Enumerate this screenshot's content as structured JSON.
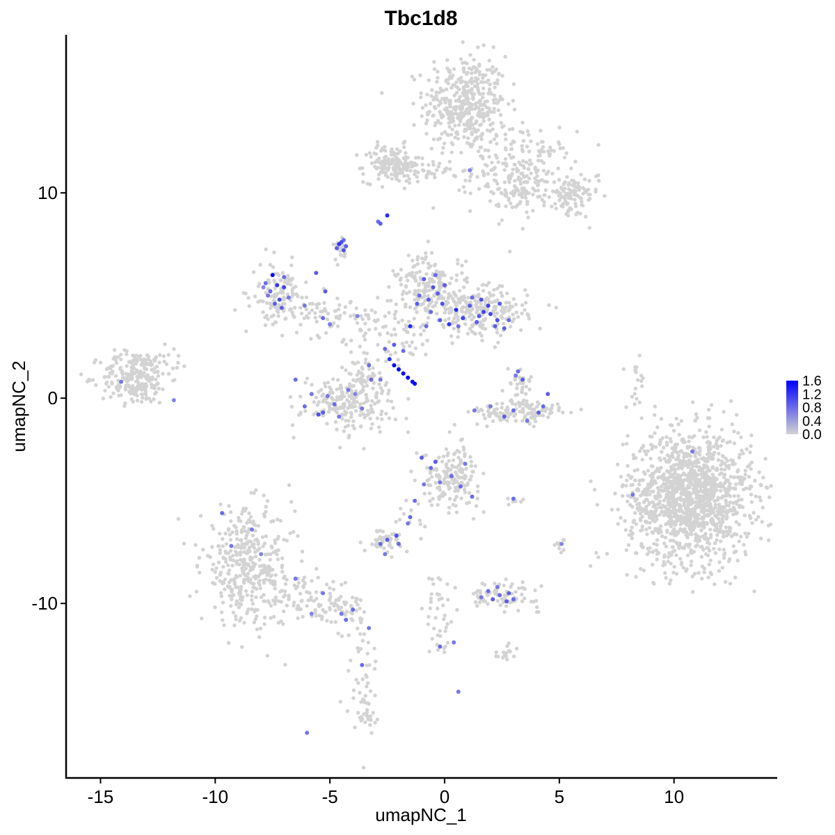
{
  "chart_data": {
    "type": "scatter",
    "title": "Tbc1d8",
    "xlabel": "umapNC_1",
    "ylabel": "umapNC_2",
    "xlim": [
      -16.5,
      14.5
    ],
    "ylim": [
      -18.5,
      17.7
    ],
    "x_ticks": [
      -15,
      -10,
      -5,
      0,
      5,
      10
    ],
    "x_tick_labels": [
      "-15",
      "-10",
      "-5",
      "0",
      "5",
      "10"
    ],
    "y_ticks": [
      -10,
      0,
      10
    ],
    "y_tick_labels": [
      "-10",
      "0",
      "10"
    ],
    "grid": false,
    "legend": {
      "placement": "right",
      "type": "colorbar",
      "min": 0.0,
      "max": 1.6,
      "ticks": [
        0.0,
        0.4,
        0.8,
        1.2,
        1.6
      ],
      "tick_labels": [
        "0.0",
        "0.4",
        "0.8",
        "1.2",
        "1.6"
      ],
      "low_color": "#d3d3d3",
      "high_color": "#0000ff"
    },
    "background_point_color": "#d3d3d3",
    "clusters": [
      {
        "cx": 0.9,
        "cy": 14.3,
        "sx": 0.9,
        "sy": 1.2,
        "n": 420
      },
      {
        "cx": 3.4,
        "cy": 11.0,
        "sx": 1.1,
        "sy": 1.0,
        "n": 220
      },
      {
        "cx": 5.5,
        "cy": 9.8,
        "sx": 0.6,
        "sy": 0.5,
        "n": 90
      },
      {
        "cx": -2.3,
        "cy": 11.4,
        "sx": 0.6,
        "sy": 0.45,
        "n": 150
      },
      {
        "cx": -0.6,
        "cy": 11.1,
        "sx": 0.8,
        "sy": 0.25,
        "n": 40
      },
      {
        "cx": -13.5,
        "cy": 1.0,
        "sx": 0.75,
        "sy": 0.65,
        "n": 230
      },
      {
        "cx": -12.0,
        "cy": 2.0,
        "sx": 0.4,
        "sy": 0.4,
        "n": 20
      },
      {
        "cx": 10.7,
        "cy": -4.8,
        "sx": 1.35,
        "sy": 1.6,
        "n": 1400
      },
      {
        "cx": -8.6,
        "cy": -8.2,
        "sx": 1.0,
        "sy": 1.4,
        "n": 380
      },
      {
        "cx": -6.0,
        "cy": -9.8,
        "sx": 1.1,
        "sy": 0.5,
        "n": 80
      },
      {
        "cx": -4.4,
        "cy": -10.5,
        "sx": 0.6,
        "sy": 0.4,
        "n": 40
      },
      {
        "cx": -3.6,
        "cy": -13.2,
        "sx": 0.35,
        "sy": 1.4,
        "n": 45
      },
      {
        "cx": -3.3,
        "cy": -15.5,
        "sx": 0.3,
        "sy": 0.4,
        "n": 20
      },
      {
        "cx": -7.3,
        "cy": 5.0,
        "sx": 0.55,
        "sy": 0.75,
        "n": 110
      },
      {
        "cx": -5.0,
        "cy": 4.0,
        "sx": 0.9,
        "sy": 0.5,
        "n": 70
      },
      {
        "cx": -4.2,
        "cy": -0.2,
        "sx": 1.0,
        "sy": 0.7,
        "n": 200
      },
      {
        "cx": -3.5,
        "cy": 1.0,
        "sx": 0.45,
        "sy": 0.5,
        "n": 45
      },
      {
        "cx": -0.6,
        "cy": 5.2,
        "sx": 0.75,
        "sy": 0.9,
        "n": 210
      },
      {
        "cx": 1.6,
        "cy": 4.2,
        "sx": 1.0,
        "sy": 0.6,
        "n": 210
      },
      {
        "cx": -2.4,
        "cy": 3.0,
        "sx": 0.9,
        "sy": 0.7,
        "n": 60
      },
      {
        "cx": 3.3,
        "cy": 0.7,
        "sx": 0.3,
        "sy": 0.5,
        "n": 30
      },
      {
        "cx": 3.3,
        "cy": -0.7,
        "sx": 1.1,
        "sy": 0.3,
        "n": 120
      },
      {
        "cx": 0.3,
        "cy": -3.8,
        "sx": 0.6,
        "sy": 0.7,
        "n": 170
      },
      {
        "cx": -1.3,
        "cy": -5.8,
        "sx": 0.4,
        "sy": 0.6,
        "n": 15
      },
      {
        "cx": -2.6,
        "cy": -6.9,
        "sx": 0.45,
        "sy": 0.3,
        "n": 40
      },
      {
        "cx": 2.5,
        "cy": -9.6,
        "sx": 0.8,
        "sy": 0.3,
        "n": 75
      },
      {
        "cx": -0.2,
        "cy": -10.6,
        "sx": 0.3,
        "sy": 1.2,
        "n": 40
      },
      {
        "cx": 2.5,
        "cy": -12.4,
        "sx": 0.3,
        "sy": 0.2,
        "n": 15
      },
      {
        "cx": -4.6,
        "cy": 7.3,
        "sx": 0.15,
        "sy": 0.3,
        "n": 25
      },
      {
        "cx": 3.3,
        "cy": 10.0,
        "sx": 0.4,
        "sy": 0.25,
        "n": 30
      },
      {
        "cx": 8.3,
        "cy": 0.5,
        "sx": 0.25,
        "sy": 0.8,
        "n": 18
      },
      {
        "cx": 5.1,
        "cy": -7.3,
        "sx": 0.15,
        "sy": 0.3,
        "n": 10
      },
      {
        "cx": 3.2,
        "cy": -5.0,
        "sx": 0.2,
        "sy": 0.1,
        "n": 6
      }
    ],
    "expressing_points": [
      [
        -7.5,
        6.0,
        1.6
      ],
      [
        -7.3,
        5.5,
        1.2
      ],
      [
        -7.6,
        5.2,
        0.8
      ],
      [
        -7.8,
        5.6,
        0.8
      ],
      [
        -7.2,
        4.8,
        1.0
      ],
      [
        -7.4,
        4.6,
        0.9
      ],
      [
        -7.0,
        5.9,
        0.8
      ],
      [
        -7.7,
        5.0,
        0.7
      ],
      [
        -7.1,
        4.4,
        0.9
      ],
      [
        -6.8,
        4.9,
        0.7
      ],
      [
        -7.9,
        5.4,
        0.6
      ],
      [
        -7.0,
        5.4,
        1.1
      ],
      [
        -5.2,
        5.2,
        0.9
      ],
      [
        -5.6,
        6.1,
        0.9
      ],
      [
        -6.1,
        4.5,
        0.7
      ],
      [
        -5.0,
        3.6,
        0.7
      ],
      [
        -5.3,
        3.9,
        0.8
      ],
      [
        -3.8,
        4.0,
        0.6
      ],
      [
        -4.6,
        7.5,
        1.2
      ],
      [
        -4.4,
        7.2,
        1.0
      ],
      [
        -4.5,
        7.6,
        1.0
      ],
      [
        -4.3,
        7.4,
        0.9
      ],
      [
        -4.7,
        7.3,
        0.9
      ],
      [
        -4.4,
        7.7,
        0.8
      ],
      [
        -2.8,
        8.5,
        0.9
      ],
      [
        -2.5,
        8.9,
        1.3
      ],
      [
        -2.9,
        8.6,
        0.8
      ],
      [
        -2.2,
        1.6,
        1.6
      ],
      [
        -2.0,
        1.4,
        1.6
      ],
      [
        -1.8,
        1.2,
        1.6
      ],
      [
        -1.6,
        1.0,
        1.6
      ],
      [
        -1.4,
        0.8,
        1.5
      ],
      [
        -2.4,
        1.9,
        1.2
      ],
      [
        -1.3,
        0.7,
        1.6
      ],
      [
        -2.6,
        2.4,
        0.8
      ],
      [
        -3.3,
        1.6,
        0.8
      ],
      [
        -2.2,
        2.6,
        0.9
      ],
      [
        -2.8,
        0.9,
        0.7
      ],
      [
        -5.3,
        -0.7,
        0.9
      ],
      [
        -5.5,
        -0.8,
        1.0
      ],
      [
        -4.8,
        -0.3,
        0.8
      ],
      [
        -3.6,
        -0.5,
        0.7
      ],
      [
        -6.1,
        -0.4,
        0.8
      ],
      [
        -6.5,
        0.9,
        0.8
      ],
      [
        -4.2,
        0.4,
        0.7
      ],
      [
        -3.2,
        0.9,
        0.8
      ],
      [
        -5.8,
        0.2,
        0.7
      ],
      [
        -4.6,
        -0.9,
        0.7
      ],
      [
        -5.1,
        0.1,
        0.7
      ],
      [
        -3.9,
        0.2,
        0.6
      ],
      [
        -0.9,
        5.8,
        0.9
      ],
      [
        -0.5,
        5.4,
        1.0
      ],
      [
        -0.3,
        5.1,
        0.9
      ],
      [
        -0.1,
        4.6,
        1.0
      ],
      [
        -1.2,
        4.6,
        0.9
      ],
      [
        -0.6,
        4.2,
        0.8
      ],
      [
        0.2,
        3.6,
        1.2
      ],
      [
        0.5,
        4.3,
        1.3
      ],
      [
        0.8,
        3.9,
        1.1
      ],
      [
        1.1,
        4.5,
        0.9
      ],
      [
        1.6,
        4.8,
        1.0
      ],
      [
        2.0,
        4.1,
        1.1
      ],
      [
        2.3,
        3.8,
        1.0
      ],
      [
        2.6,
        3.4,
        0.9
      ],
      [
        1.4,
        3.7,
        0.9
      ],
      [
        -0.8,
        3.5,
        0.8
      ],
      [
        -0.2,
        3.8,
        0.9
      ],
      [
        -1.5,
        3.5,
        1.3
      ],
      [
        1.9,
        4.5,
        1.1
      ],
      [
        2.4,
        4.6,
        0.9
      ],
      [
        1.2,
        4.9,
        0.8
      ],
      [
        0.0,
        5.5,
        0.9
      ],
      [
        -1.1,
        5.0,
        0.8
      ],
      [
        -0.4,
        6.0,
        0.8
      ],
      [
        2.2,
        3.5,
        0.9
      ],
      [
        1.7,
        4.2,
        1.1
      ],
      [
        0.6,
        3.5,
        0.8
      ],
      [
        -0.7,
        4.8,
        0.9
      ],
      [
        2.8,
        3.8,
        0.8
      ],
      [
        1.5,
        4.0,
        0.9
      ],
      [
        3.2,
        1.3,
        0.8
      ],
      [
        3.4,
        0.9,
        0.9
      ],
      [
        3.1,
        1.1,
        0.7
      ],
      [
        3.0,
        -0.6,
        0.8
      ],
      [
        2.6,
        -0.9,
        0.9
      ],
      [
        4.1,
        -0.7,
        0.9
      ],
      [
        4.3,
        -0.4,
        0.8
      ],
      [
        4.5,
        0.2,
        0.9
      ],
      [
        3.6,
        -1.1,
        0.7
      ],
      [
        2.0,
        -0.4,
        0.7
      ],
      [
        1.3,
        -0.6,
        0.7
      ],
      [
        -1.0,
        -2.9,
        0.9
      ],
      [
        -0.6,
        -3.4,
        0.8
      ],
      [
        -0.4,
        -3.1,
        0.9
      ],
      [
        0.3,
        -3.8,
        0.8
      ],
      [
        0.7,
        -4.3,
        0.8
      ],
      [
        0.9,
        -3.2,
        0.7
      ],
      [
        -1.3,
        -5.0,
        0.8
      ],
      [
        -0.9,
        -4.2,
        0.7
      ],
      [
        -0.2,
        -4.1,
        0.7
      ],
      [
        1.2,
        -4.8,
        0.8
      ],
      [
        -1.5,
        -5.8,
        0.8
      ],
      [
        -1.6,
        -6.1,
        0.7
      ],
      [
        -2.5,
        -6.9,
        0.9
      ],
      [
        -2.1,
        -6.7,
        1.0
      ],
      [
        -2.8,
        -7.1,
        0.8
      ],
      [
        -2.0,
        -7.1,
        0.8
      ],
      [
        -2.6,
        -7.6,
        0.7
      ],
      [
        1.9,
        -9.4,
        0.8
      ],
      [
        2.1,
        -9.8,
        0.9
      ],
      [
        2.4,
        -9.6,
        0.8
      ],
      [
        2.8,
        -9.5,
        0.9
      ],
      [
        3.0,
        -9.8,
        0.8
      ],
      [
        1.6,
        -9.7,
        0.7
      ],
      [
        2.7,
        -9.9,
        0.9
      ],
      [
        2.3,
        -9.2,
        0.7
      ],
      [
        -14.1,
        0.8,
        0.7
      ],
      [
        -11.8,
        -0.1,
        0.6
      ],
      [
        -9.7,
        -5.6,
        0.8
      ],
      [
        -9.3,
        -7.2,
        0.7
      ],
      [
        -8.4,
        -6.4,
        0.7
      ],
      [
        -8.0,
        -7.6,
        0.6
      ],
      [
        -6.5,
        -8.8,
        0.7
      ],
      [
        -5.3,
        -9.5,
        0.7
      ],
      [
        -4.5,
        -10.5,
        0.7
      ],
      [
        -4.0,
        -10.3,
        0.8
      ],
      [
        -4.3,
        -10.8,
        0.8
      ],
      [
        -5.8,
        -10.5,
        0.6
      ],
      [
        -3.6,
        -13.0,
        0.8
      ],
      [
        -3.3,
        -11.2,
        0.7
      ],
      [
        -6.0,
        -16.3,
        0.7
      ],
      [
        -0.2,
        -12.1,
        0.8
      ],
      [
        0.6,
        -14.3,
        0.7
      ],
      [
        0.4,
        -11.9,
        0.7
      ],
      [
        3.0,
        -4.9,
        0.8
      ],
      [
        5.1,
        -7.1,
        0.6
      ],
      [
        8.2,
        -4.7,
        0.7
      ],
      [
        10.8,
        -2.6,
        0.7
      ],
      [
        1.1,
        11.1,
        0.6
      ],
      [
        -1.8,
        2.3,
        0.8
      ]
    ]
  }
}
